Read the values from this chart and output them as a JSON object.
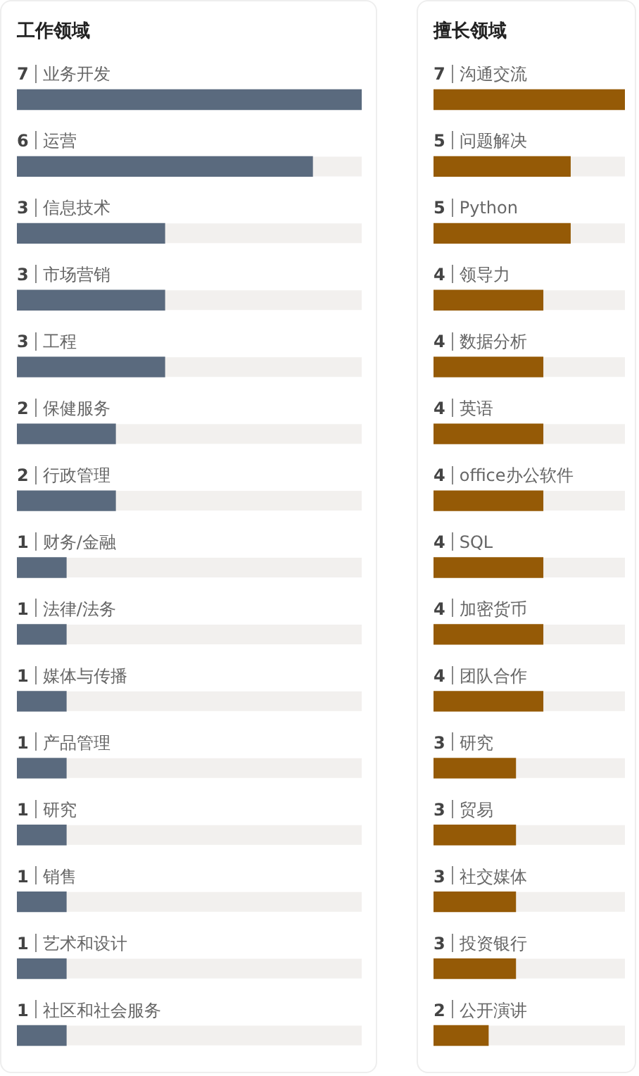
{
  "chart_data": [
    {
      "type": "bar",
      "title": "工作领域",
      "orientation": "horizontal",
      "data_labels": true,
      "tick_labels": false,
      "xlim": [
        0,
        7
      ],
      "color": "#5a6a7e",
      "categories": [
        "业务开发",
        "运营",
        "信息技术",
        "市场营销",
        "工程",
        "保健服务",
        "行政管理",
        "财务/金融",
        "法律/法务",
        "媒体与传播",
        "产品管理",
        "研究",
        "销售",
        "艺术和设计",
        "社区和社会服务"
      ],
      "values": [
        7,
        6,
        3,
        3,
        3,
        2,
        2,
        1,
        1,
        1,
        1,
        1,
        1,
        1,
        1
      ]
    },
    {
      "type": "bar",
      "title": "擅长领域",
      "orientation": "horizontal",
      "data_labels": true,
      "tick_labels": false,
      "xlim": [
        0,
        7
      ],
      "color": "#955a06",
      "categories": [
        "沟通交流",
        "问题解决",
        "Python",
        "领导力",
        "数据分析",
        "英语",
        "office办公软件",
        "SQL",
        "加密货币",
        "团队合作",
        "研究",
        "贸易",
        "社交媒体",
        "投资银行",
        "公开演讲"
      ],
      "values": [
        7,
        5,
        5,
        4,
        4,
        4,
        4,
        4,
        4,
        4,
        3,
        3,
        3,
        3,
        2
      ]
    }
  ]
}
